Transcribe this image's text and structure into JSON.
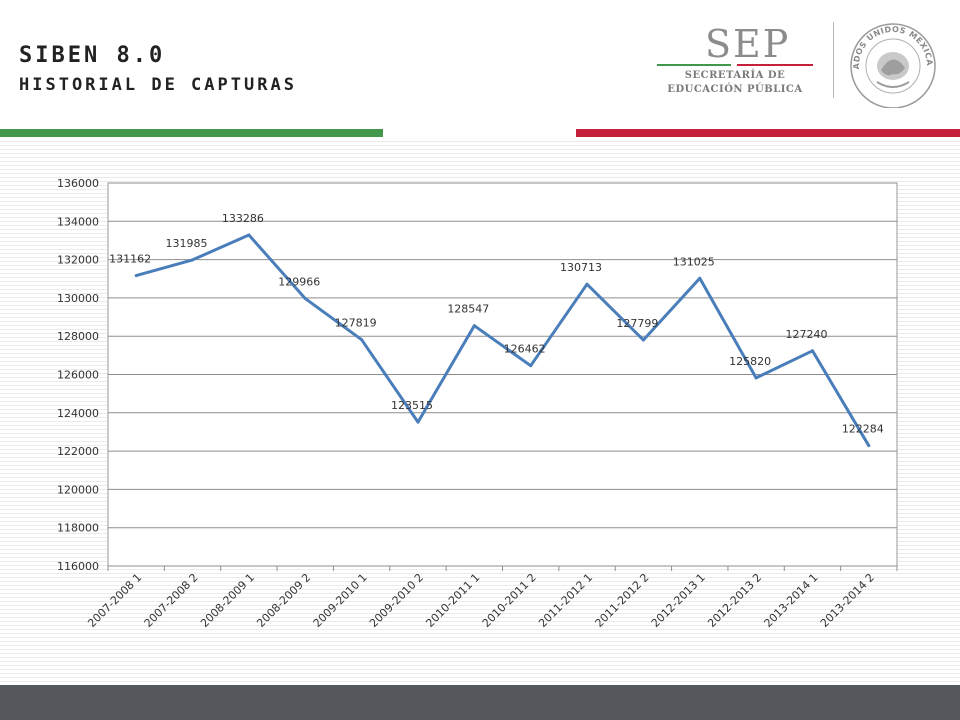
{
  "header": {
    "title": "SIBEN 8.0",
    "subtitle": "HISTORIAL DE CAPTURAS"
  },
  "logo": {
    "word": "SEP",
    "line1": "SECRETARÍA DE",
    "line2": "EDUCACIÓN PÚBLICA",
    "seal_text": "ESTADOS UNIDOS MEXICANOS"
  },
  "colors": {
    "green": "#43974a",
    "red": "#c4203b",
    "line": "#4a7ebb",
    "footer": "#54585c"
  },
  "chart_data": {
    "type": "line",
    "title": "",
    "xlabel": "",
    "ylabel": "",
    "categories": [
      "2007-2008 1",
      "2007-2008 2",
      "2008-2009 1",
      "2008-2009 2",
      "2009-2010 1",
      "2009-2010 2",
      "2010-2011 1",
      "2010-2011 2",
      "2011-2012 1",
      "2011-2012 2",
      "2012-2013 1",
      "2012-2013 2",
      "2013-2014 1",
      "2013-2014 2"
    ],
    "series": [
      {
        "values": [
          131162,
          131985,
          133286,
          129966,
          127819,
          123515,
          128547,
          126462,
          130713,
          127799,
          131025,
          125820,
          127240,
          122284
        ]
      }
    ],
    "ylim": [
      116000,
      136000
    ],
    "yticks": [
      116000,
      118000,
      120000,
      122000,
      124000,
      126000,
      128000,
      130000,
      132000,
      134000,
      136000
    ],
    "grid": true,
    "data_labels": true,
    "legend": "none"
  }
}
